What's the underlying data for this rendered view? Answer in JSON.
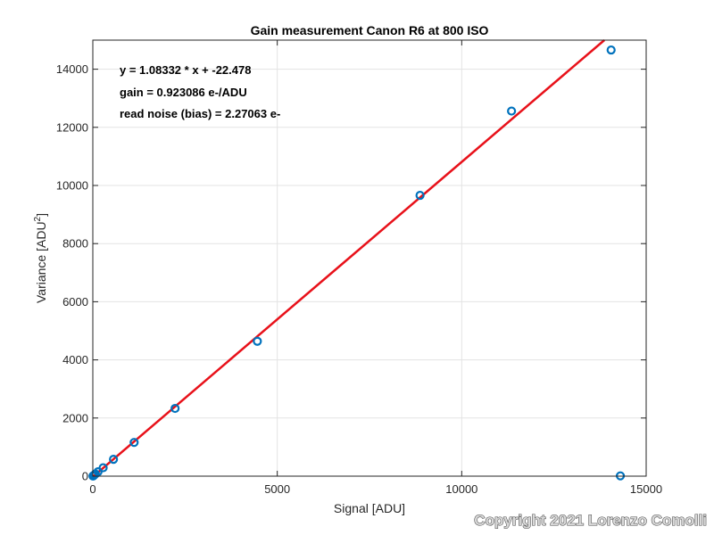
{
  "chart_data": {
    "type": "scatter",
    "title": "Gain measurement Canon R6 at 800 ISO",
    "xlabel": "Signal [ADU]",
    "ylabel_main": "Variance [ADU",
    "ylabel_sup": "2",
    "ylabel_end": "]",
    "xlim": [
      0,
      15000
    ],
    "ylim": [
      0,
      15000
    ],
    "xticks": [
      0,
      5000,
      10000,
      15000
    ],
    "xtick_labels": [
      "0",
      "5000",
      "10000",
      "15000"
    ],
    "yticks": [
      0,
      2000,
      4000,
      6000,
      8000,
      10000,
      12000,
      14000
    ],
    "ytick_labels": [
      "0",
      "2000",
      "4000",
      "6000",
      "8000",
      "10000",
      "12000",
      "14000"
    ],
    "grid": true,
    "points": {
      "x": [
        5,
        10,
        20,
        40,
        70,
        140,
        280,
        560,
        1120,
        2230,
        4460,
        8870,
        11350,
        14050,
        14300
      ],
      "y": [
        5,
        10,
        20,
        40,
        75,
        150,
        290,
        580,
        1160,
        2330,
        4640,
        9660,
        12560,
        14660,
        10
      ],
      "color": "#0072BD"
    },
    "fit_line": {
      "slope": 1.08332,
      "intercept": -22.478,
      "x_range": [
        0,
        15000
      ],
      "color": "#E8111A"
    },
    "annotations": [
      "y = 1.08332 * x + -22.478",
      "gain = 0.923086 e-/ADU",
      "read noise (bias) = 2.27063 e-"
    ]
  },
  "watermark": "Copyright 2021 Lorenzo Comolli"
}
